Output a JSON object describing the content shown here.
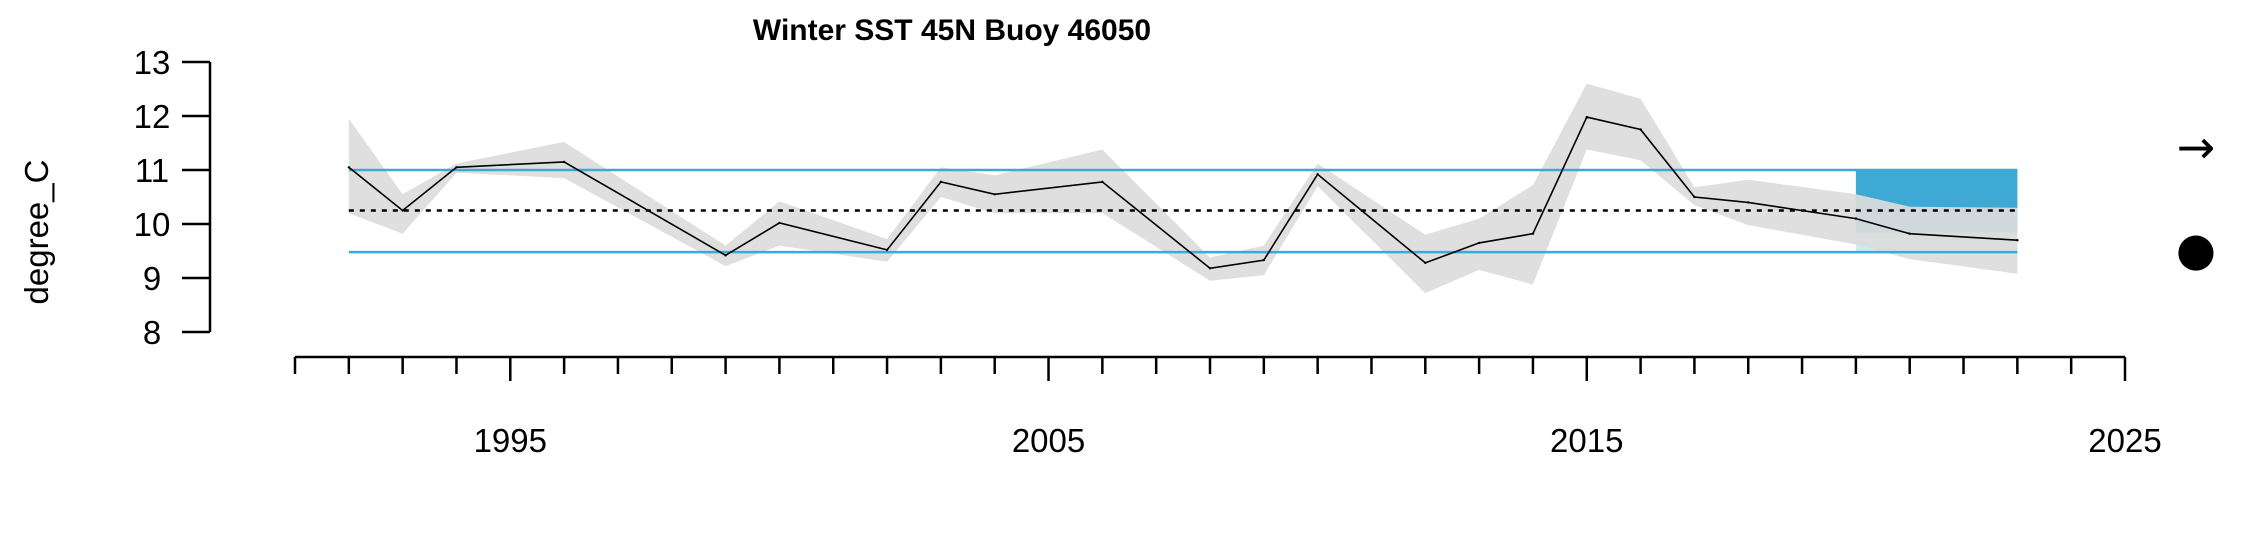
{
  "chart_data": {
    "type": "line",
    "title": "Winter SST 45N Buoy 46050",
    "xlabel": "",
    "ylabel": "degree_C",
    "xlim": [
      1991,
      2025
    ],
    "ylim": [
      8,
      13
    ],
    "y_ticks": [
      8,
      9,
      10,
      11,
      12,
      13
    ],
    "x_tick_labels": [
      1995,
      2005,
      2015,
      2025
    ],
    "colors": {
      "line": "#000000",
      "band": "#dcdcdc",
      "sd_lines": "#3fa9d6",
      "recent_block": "#3fa9d6",
      "mean_line": "#000000"
    },
    "reference_lines": {
      "mean": 10.25,
      "upper_sd": 11.0,
      "lower_sd": 9.48
    },
    "recent_period": {
      "start": 2020,
      "end": 2023
    },
    "series": [
      {
        "x": [
          1992,
          1993,
          1994,
          1996,
          1999,
          2000,
          2002,
          2003,
          2004,
          2006,
          2008,
          2009,
          2010,
          2012,
          2013,
          2014,
          2015,
          2016,
          2017,
          2018,
          2020,
          2021,
          2023
        ],
        "values": [
          11.05,
          10.25,
          11.05,
          11.15,
          9.42,
          10.02,
          9.52,
          10.78,
          10.55,
          10.78,
          9.18,
          9.33,
          10.92,
          9.28,
          9.65,
          9.82,
          11.98,
          11.75,
          10.5,
          10.4,
          10.1,
          9.82,
          9.7
        ],
        "lower": [
          10.2,
          9.82,
          10.95,
          10.85,
          9.22,
          9.6,
          9.3,
          10.5,
          10.2,
          10.2,
          8.95,
          9.05,
          10.7,
          8.72,
          9.15,
          8.88,
          11.38,
          11.18,
          10.35,
          9.98,
          9.62,
          9.35,
          9.08
        ],
        "upper": [
          11.95,
          10.55,
          11.12,
          11.52,
          9.6,
          10.42,
          9.72,
          11.05,
          10.9,
          11.38,
          9.38,
          9.6,
          11.12,
          9.8,
          10.1,
          10.72,
          12.6,
          12.32,
          10.68,
          10.82,
          10.55,
          10.32,
          10.3
        ]
      }
    ],
    "trend_indicators": {
      "trend": "→",
      "mean": "●"
    }
  }
}
